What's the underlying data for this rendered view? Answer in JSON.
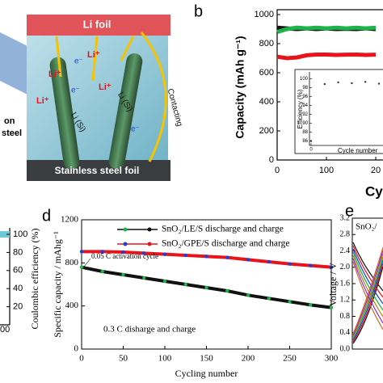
{
  "diagram": {
    "top_label": "Li foil",
    "bottom_label": "Stainless steel foil",
    "ion_labels": [
      "Li⁺",
      "Li⁺",
      "Li⁺",
      "Li⁺"
    ],
    "electron_labels": [
      "e⁻",
      "e⁻",
      "e⁻"
    ],
    "alloy_labels": [
      "Li (Si)",
      "Li (Si)"
    ],
    "arrow_label": "Contacting",
    "side_labels": [
      "on",
      "steel"
    ]
  },
  "panel_b": {
    "letter": "b",
    "ylabel": "Capacity (mAh g⁻¹)",
    "xlabel": "Cy",
    "ylim": [
      0,
      1000
    ],
    "yticks": [
      0,
      200,
      400,
      600,
      800,
      1000
    ],
    "xlim": [
      0,
      215
    ],
    "xticks": [
      0,
      100,
      {
        "value": 200,
        "label": "20"
      }
    ],
    "x": [
      0,
      20,
      40,
      60,
      80,
      100,
      120,
      140,
      160,
      180,
      200
    ],
    "series": [
      {
        "color": "#111111",
        "values": [
          910,
          905,
          900,
          905,
          900,
          905,
          900,
          902,
          900,
          905,
          900
        ]
      },
      {
        "color": "#1db34a",
        "values": [
          880,
          900,
          910,
          905,
          910,
          905,
          910,
          905,
          910,
          905,
          910
        ]
      },
      {
        "color": "#e8141b",
        "values": [
          710,
          700,
          705,
          720,
          725,
          725,
          722,
          724,
          725,
          722,
          724
        ]
      }
    ],
    "inset": {
      "ylabel": "Efficiency (%)",
      "xlabel": "Cycle number",
      "ylim": [
        85,
        101
      ],
      "yticks": [
        86,
        88,
        90,
        92,
        94,
        96,
        98,
        100
      ],
      "xticks": [
        0
      ],
      "xlim": [
        0,
        200
      ],
      "x": [
        0,
        20,
        40,
        60,
        80,
        100,
        120,
        140,
        160,
        180,
        200
      ],
      "values": [
        86,
        98.8,
        99.2,
        99.0,
        99.3,
        98.9,
        99.1,
        99.2,
        98.8,
        99.1,
        99.0
      ]
    }
  },
  "panel_left": {
    "ylabel": "Coulombic efficiency (%)",
    "ylim": [
      0,
      100
    ],
    "yticks": [
      20,
      40,
      60,
      80,
      100
    ],
    "xtick": "00"
  },
  "panel_d": {
    "letter": "d",
    "ylabel": "Specific capacity / mAhg⁻¹",
    "xlabel": "Cycling number",
    "xlim": [
      0,
      300
    ],
    "ylim": [
      0,
      1200
    ],
    "xticks": [
      0,
      50,
      100,
      150,
      200,
      250,
      300
    ],
    "yticks": [
      0,
      400,
      800,
      1200
    ],
    "annotations": [
      "0.05 C activation cycle",
      "0.3 C disharge and charge"
    ],
    "x": [
      0,
      25,
      50,
      75,
      100,
      125,
      150,
      175,
      200,
      225,
      250,
      275,
      300
    ],
    "series": [
      {
        "name": "SnO₂/LE/S discharge and charge",
        "color": "#111111",
        "marker2": "#1db34a",
        "values": [
          760,
          720,
          690,
          660,
          630,
          600,
          570,
          540,
          500,
          470,
          440,
          410,
          385
        ]
      },
      {
        "name": "SnO₂/GPE/S discharge and charge",
        "color": "#e8141b",
        "marker2": "#1f3fd6",
        "values": [
          905,
          905,
          900,
          890,
          880,
          870,
          860,
          850,
          830,
          810,
          790,
          775,
          760
        ]
      }
    ]
  },
  "panel_e": {
    "letter": "e",
    "ylabel": "Voltage / V",
    "ylim": [
      0,
      3.2
    ],
    "yticks": [
      {
        "value": 0,
        "label": "0.0"
      },
      {
        "value": 0.4,
        "label": "0.4"
      },
      {
        "value": 0.8,
        "label": "0.8"
      },
      {
        "value": 1.2,
        "label": "1.2"
      },
      {
        "value": 1.6,
        "label": "1.6"
      },
      {
        "value": 2.0,
        "label": "2.0"
      },
      {
        "value": 2.4,
        "label": "2.4"
      },
      {
        "value": 2.8,
        "label": "2.8"
      },
      {
        "value": 3.2,
        "label": "3.2"
      }
    ],
    "legend_fragment": "SnO₂/"
  }
}
